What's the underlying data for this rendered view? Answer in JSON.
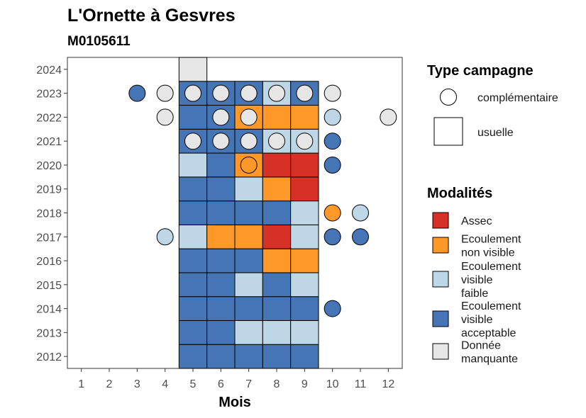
{
  "chart_data": {
    "type": "heatmap",
    "title": "L'Ornette à Gesvres",
    "subtitle": "M0105611",
    "xlabel": "Mois",
    "ylabel": "",
    "x_ticks": [
      1,
      2,
      3,
      4,
      5,
      6,
      7,
      8,
      9,
      10,
      11,
      12
    ],
    "y_ticks": [
      2012,
      2013,
      2014,
      2015,
      2016,
      2017,
      2018,
      2019,
      2020,
      2021,
      2022,
      2023,
      2024
    ],
    "xlim": [
      0.5,
      12.5
    ],
    "ylim": [
      2011.5,
      2024.5
    ],
    "colors": {
      "Assec": "#d73027",
      "Ecoulement non visible": "#fe9929",
      "Ecoulement visible faible": "#bdd7e7",
      "Ecoulement visible acceptable": "#4575b4",
      "Donnée manquante": "#e6e6e6"
    },
    "legend_type": {
      "title": "Type campagne",
      "items": [
        {
          "shape": "circle",
          "label": "complémentaire"
        },
        {
          "shape": "square",
          "label": "usuelle"
        }
      ]
    },
    "legend_mod": {
      "title": "Modalités",
      "items": [
        {
          "key": "Assec",
          "lines": [
            "Assec"
          ]
        },
        {
          "key": "Ecoulement non visible",
          "lines": [
            "Ecoulement",
            "non visible"
          ]
        },
        {
          "key": "Ecoulement visible faible",
          "lines": [
            "Ecoulement",
            "visible",
            "faible"
          ]
        },
        {
          "key": "Ecoulement visible acceptable",
          "lines": [
            "Ecoulement",
            "visible",
            "acceptable"
          ]
        },
        {
          "key": "Donnée manquante",
          "lines": [
            "Donnée",
            "manquante"
          ]
        }
      ]
    },
    "squares": [
      {
        "year": 2012,
        "month": 5,
        "mod": "Ecoulement visible acceptable"
      },
      {
        "year": 2012,
        "month": 6,
        "mod": "Ecoulement visible acceptable"
      },
      {
        "year": 2012,
        "month": 7,
        "mod": "Ecoulement visible acceptable"
      },
      {
        "year": 2012,
        "month": 8,
        "mod": "Ecoulement visible acceptable"
      },
      {
        "year": 2012,
        "month": 9,
        "mod": "Ecoulement visible acceptable"
      },
      {
        "year": 2013,
        "month": 5,
        "mod": "Ecoulement visible acceptable"
      },
      {
        "year": 2013,
        "month": 6,
        "mod": "Ecoulement visible acceptable"
      },
      {
        "year": 2013,
        "month": 7,
        "mod": "Ecoulement visible faible"
      },
      {
        "year": 2013,
        "month": 8,
        "mod": "Ecoulement visible faible"
      },
      {
        "year": 2013,
        "month": 9,
        "mod": "Ecoulement visible faible"
      },
      {
        "year": 2014,
        "month": 5,
        "mod": "Ecoulement visible acceptable"
      },
      {
        "year": 2014,
        "month": 6,
        "mod": "Ecoulement visible acceptable"
      },
      {
        "year": 2014,
        "month": 7,
        "mod": "Ecoulement visible acceptable"
      },
      {
        "year": 2014,
        "month": 8,
        "mod": "Ecoulement visible acceptable"
      },
      {
        "year": 2014,
        "month": 9,
        "mod": "Ecoulement visible acceptable"
      },
      {
        "year": 2015,
        "month": 5,
        "mod": "Ecoulement visible acceptable"
      },
      {
        "year": 2015,
        "month": 6,
        "mod": "Ecoulement visible acceptable"
      },
      {
        "year": 2015,
        "month": 7,
        "mod": "Ecoulement visible faible"
      },
      {
        "year": 2015,
        "month": 8,
        "mod": "Ecoulement visible acceptable"
      },
      {
        "year": 2015,
        "month": 9,
        "mod": "Ecoulement visible faible"
      },
      {
        "year": 2016,
        "month": 5,
        "mod": "Ecoulement visible acceptable"
      },
      {
        "year": 2016,
        "month": 6,
        "mod": "Ecoulement visible acceptable"
      },
      {
        "year": 2016,
        "month": 7,
        "mod": "Ecoulement visible acceptable"
      },
      {
        "year": 2016,
        "month": 8,
        "mod": "Ecoulement non visible"
      },
      {
        "year": 2016,
        "month": 9,
        "mod": "Ecoulement non visible"
      },
      {
        "year": 2017,
        "month": 5,
        "mod": "Ecoulement visible faible"
      },
      {
        "year": 2017,
        "month": 6,
        "mod": "Ecoulement non visible"
      },
      {
        "year": 2017,
        "month": 7,
        "mod": "Ecoulement non visible"
      },
      {
        "year": 2017,
        "month": 8,
        "mod": "Assec"
      },
      {
        "year": 2017,
        "month": 9,
        "mod": "Ecoulement visible faible"
      },
      {
        "year": 2018,
        "month": 5,
        "mod": "Ecoulement visible acceptable"
      },
      {
        "year": 2018,
        "month": 6,
        "mod": "Ecoulement visible acceptable"
      },
      {
        "year": 2018,
        "month": 7,
        "mod": "Ecoulement visible acceptable"
      },
      {
        "year": 2018,
        "month": 8,
        "mod": "Ecoulement visible acceptable"
      },
      {
        "year": 2018,
        "month": 9,
        "mod": "Ecoulement visible faible"
      },
      {
        "year": 2019,
        "month": 5,
        "mod": "Ecoulement visible acceptable"
      },
      {
        "year": 2019,
        "month": 6,
        "mod": "Ecoulement visible acceptable"
      },
      {
        "year": 2019,
        "month": 7,
        "mod": "Ecoulement visible faible"
      },
      {
        "year": 2019,
        "month": 8,
        "mod": "Ecoulement non visible"
      },
      {
        "year": 2019,
        "month": 9,
        "mod": "Assec"
      },
      {
        "year": 2020,
        "month": 5,
        "mod": "Ecoulement visible faible"
      },
      {
        "year": 2020,
        "month": 6,
        "mod": "Ecoulement visible acceptable"
      },
      {
        "year": 2020,
        "month": 7,
        "mod": "Ecoulement non visible"
      },
      {
        "year": 2020,
        "month": 8,
        "mod": "Assec"
      },
      {
        "year": 2020,
        "month": 9,
        "mod": "Assec"
      },
      {
        "year": 2021,
        "month": 5,
        "mod": "Ecoulement visible acceptable"
      },
      {
        "year": 2021,
        "month": 6,
        "mod": "Ecoulement visible acceptable"
      },
      {
        "year": 2021,
        "month": 7,
        "mod": "Ecoulement visible acceptable"
      },
      {
        "year": 2021,
        "month": 8,
        "mod": "Ecoulement visible faible"
      },
      {
        "year": 2021,
        "month": 9,
        "mod": "Ecoulement visible faible"
      },
      {
        "year": 2022,
        "month": 5,
        "mod": "Ecoulement visible acceptable"
      },
      {
        "year": 2022,
        "month": 6,
        "mod": "Ecoulement visible acceptable"
      },
      {
        "year": 2022,
        "month": 7,
        "mod": "Ecoulement non visible"
      },
      {
        "year": 2022,
        "month": 8,
        "mod": "Ecoulement non visible"
      },
      {
        "year": 2022,
        "month": 9,
        "mod": "Ecoulement non visible"
      },
      {
        "year": 2023,
        "month": 5,
        "mod": "Ecoulement visible acceptable"
      },
      {
        "year": 2023,
        "month": 6,
        "mod": "Ecoulement visible acceptable"
      },
      {
        "year": 2023,
        "month": 7,
        "mod": "Ecoulement visible acceptable"
      },
      {
        "year": 2023,
        "month": 8,
        "mod": "Ecoulement visible faible"
      },
      {
        "year": 2023,
        "month": 9,
        "mod": "Ecoulement visible acceptable"
      },
      {
        "year": 2024,
        "month": 5,
        "mod": "Donnée manquante"
      }
    ],
    "circles": [
      {
        "year": 2014,
        "month": 10,
        "mod": "Ecoulement visible acceptable"
      },
      {
        "year": 2017,
        "month": 4,
        "mod": "Ecoulement visible faible"
      },
      {
        "year": 2017,
        "month": 10,
        "mod": "Ecoulement visible acceptable"
      },
      {
        "year": 2017,
        "month": 11,
        "mod": "Ecoulement visible acceptable"
      },
      {
        "year": 2018,
        "month": 10,
        "mod": "Ecoulement non visible"
      },
      {
        "year": 2018,
        "month": 11,
        "mod": "Ecoulement visible faible"
      },
      {
        "year": 2020,
        "month": 7,
        "mod": "Ecoulement non visible"
      },
      {
        "year": 2020,
        "month": 10,
        "mod": "Ecoulement visible acceptable"
      },
      {
        "year": 2021,
        "month": 5,
        "mod": "Donnée manquante"
      },
      {
        "year": 2021,
        "month": 6,
        "mod": "Donnée manquante"
      },
      {
        "year": 2021,
        "month": 7,
        "mod": "Donnée manquante"
      },
      {
        "year": 2021,
        "month": 8,
        "mod": "Donnée manquante"
      },
      {
        "year": 2021,
        "month": 9,
        "mod": "Donnée manquante"
      },
      {
        "year": 2021,
        "month": 10,
        "mod": "Ecoulement visible acceptable"
      },
      {
        "year": 2022,
        "month": 4,
        "mod": "Donnée manquante"
      },
      {
        "year": 2022,
        "month": 6,
        "mod": "Donnée manquante"
      },
      {
        "year": 2022,
        "month": 7,
        "mod": "Donnée manquante"
      },
      {
        "year": 2022,
        "month": 10,
        "mod": "Ecoulement visible faible"
      },
      {
        "year": 2022,
        "month": 12,
        "mod": "Donnée manquante"
      },
      {
        "year": 2023,
        "month": 3,
        "mod": "Ecoulement visible acceptable"
      },
      {
        "year": 2023,
        "month": 4,
        "mod": "Donnée manquante"
      },
      {
        "year": 2023,
        "month": 5,
        "mod": "Donnée manquante"
      },
      {
        "year": 2023,
        "month": 6,
        "mod": "Donnée manquante"
      },
      {
        "year": 2023,
        "month": 7,
        "mod": "Donnée manquante"
      },
      {
        "year": 2023,
        "month": 8,
        "mod": "Donnée manquante"
      },
      {
        "year": 2023,
        "month": 9,
        "mod": "Donnée manquante"
      },
      {
        "year": 2023,
        "month": 10,
        "mod": "Donnée manquante"
      }
    ]
  }
}
